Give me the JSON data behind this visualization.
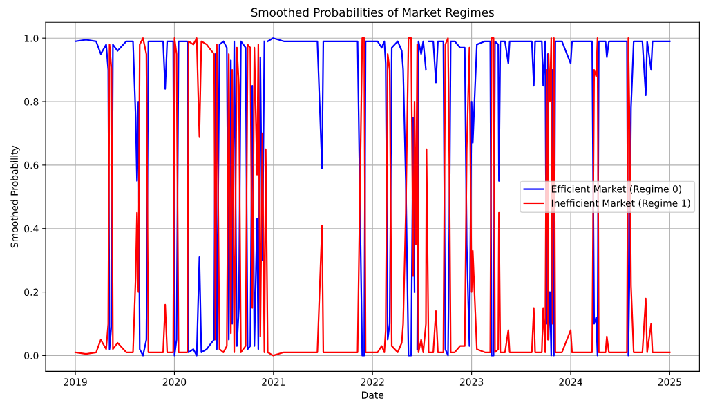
{
  "chart_data": {
    "type": "line",
    "title": "Smoothed Probabilities of Market Regimes",
    "xlabel": "Date",
    "ylabel": "Smoothed Probability",
    "x": [
      2019.0,
      2019.108,
      2019.21,
      2019.257,
      2019.311,
      2019.332,
      2019.345,
      2019.365,
      2019.379,
      2019.426,
      2019.514,
      2019.582,
      2019.609,
      2019.622,
      2019.636,
      2019.65,
      2019.683,
      2019.717,
      2019.737,
      2019.886,
      2019.907,
      2019.927,
      2019.988,
      2020.001,
      2020.022,
      2020.042,
      2020.13,
      2020.143,
      2020.191,
      2020.225,
      2020.252,
      2020.272,
      2020.326,
      2020.374,
      2020.401,
      2020.414,
      2020.428,
      2020.455,
      2020.495,
      2020.529,
      2020.549,
      2020.57,
      2020.583,
      2020.604,
      2020.631,
      2020.651,
      2020.671,
      2020.719,
      2020.739,
      2020.766,
      2020.786,
      2020.807,
      2020.834,
      2020.847,
      2020.867,
      2020.888,
      2020.908,
      2020.922,
      2020.942,
      2020.996,
      2021.104,
      2021.24,
      2021.443,
      2021.49,
      2021.503,
      2021.646,
      2021.849,
      2021.896,
      2021.916,
      2021.93,
      2022.051,
      2022.092,
      2022.119,
      2022.133,
      2022.153,
      2022.173,
      2022.194,
      2022.254,
      2022.295,
      2022.309,
      2022.336,
      2022.363,
      2022.39,
      2022.41,
      2022.424,
      2022.437,
      2022.451,
      2022.464,
      2022.491,
      2022.512,
      2022.539,
      2022.545,
      2022.566,
      2022.613,
      2022.64,
      2022.66,
      2022.715,
      2022.735,
      2022.762,
      2022.775,
      2022.789,
      2022.83,
      2022.884,
      2022.931,
      2022.951,
      2022.978,
      2023.0,
      2023.012,
      2023.033,
      2023.053,
      2023.134,
      2023.188,
      2023.202,
      2023.222,
      2023.236,
      2023.269,
      2023.276,
      2023.29,
      2023.337,
      2023.371,
      2023.384,
      2023.472,
      2023.608,
      2023.628,
      2023.641,
      2023.709,
      2023.723,
      2023.743,
      2023.757,
      2023.77,
      2023.777,
      2023.79,
      2023.804,
      2023.817,
      2023.831,
      2023.845,
      2023.912,
      2024.0,
      2024.014,
      2024.149,
      2024.217,
      2024.237,
      2024.257,
      2024.271,
      2024.284,
      2024.352,
      2024.365,
      2024.386,
      2024.555,
      2024.568,
      2024.582,
      2024.596,
      2024.609,
      2024.636,
      2024.724,
      2024.758,
      2024.772,
      2024.812,
      2024.826,
      2025.0
    ],
    "series": [
      {
        "name": "Efficient Market (Regime 0)",
        "color": "#0000ff",
        "values": [
          0.99,
          0.995,
          0.99,
          0.95,
          0.98,
          0.9,
          0.02,
          0.1,
          0.98,
          0.96,
          0.99,
          0.99,
          0.75,
          0.55,
          0.8,
          0.02,
          0.0,
          0.05,
          0.99,
          0.99,
          0.84,
          0.99,
          0.99,
          0.0,
          0.05,
          0.99,
          0.99,
          0.01,
          0.02,
          0.0,
          0.31,
          0.01,
          0.02,
          0.04,
          0.05,
          0.95,
          0.02,
          0.98,
          0.99,
          0.97,
          0.05,
          0.93,
          0.1,
          0.99,
          0.03,
          0.15,
          0.99,
          0.97,
          0.02,
          0.03,
          0.85,
          0.03,
          0.43,
          0.02,
          0.94,
          0.3,
          0.99,
          null,
          0.99,
          1.0,
          0.99,
          0.99,
          0.99,
          0.59,
          0.99,
          0.99,
          0.99,
          0.0,
          0.0,
          0.99,
          0.99,
          0.97,
          0.99,
          0.92,
          0.05,
          0.1,
          0.97,
          0.99,
          0.96,
          0.9,
          0.55,
          0.0,
          0.0,
          0.75,
          0.2,
          null,
          0.02,
          0.99,
          0.95,
          0.99,
          0.9,
          null,
          0.99,
          0.99,
          0.86,
          0.99,
          0.99,
          0.02,
          0.0,
          0.4,
          0.99,
          0.99,
          0.97,
          0.97,
          0.35,
          0.03,
          0.8,
          0.67,
          0.83,
          0.98,
          0.99,
          0.99,
          0.0,
          0.0,
          0.99,
          0.98,
          0.55,
          0.99,
          0.99,
          0.92,
          0.99,
          0.99,
          0.99,
          0.85,
          0.99,
          0.99,
          0.85,
          0.99,
          0.1,
          0.95,
          0.05,
          0.2,
          0.0,
          0.9,
          0.0,
          0.99,
          0.99,
          0.92,
          0.99,
          0.99,
          0.99,
          0.1,
          0.12,
          0.0,
          0.99,
          0.99,
          0.94,
          0.99,
          0.99,
          0.99,
          0.0,
          0.3,
          0.78,
          0.99,
          0.99,
          0.82,
          0.99,
          0.9,
          0.99,
          0.99
        ]
      },
      {
        "name": "Inefficient Market (Regime 1)",
        "color": "#ff0000",
        "values": [
          0.01,
          0.005,
          0.01,
          0.05,
          0.02,
          0.1,
          0.98,
          0.9,
          0.02,
          0.04,
          0.01,
          0.01,
          0.25,
          0.45,
          0.2,
          0.98,
          1.0,
          0.95,
          0.01,
          0.01,
          0.16,
          0.01,
          0.01,
          1.0,
          0.95,
          0.01,
          0.01,
          0.99,
          0.98,
          1.0,
          0.69,
          0.99,
          0.98,
          0.96,
          0.95,
          0.05,
          0.98,
          0.02,
          0.01,
          0.03,
          0.95,
          0.07,
          0.9,
          0.01,
          0.97,
          0.85,
          0.01,
          0.03,
          0.98,
          0.97,
          0.15,
          0.97,
          0.57,
          0.98,
          0.06,
          0.7,
          0.01,
          0.65,
          0.01,
          0.0,
          0.01,
          0.01,
          0.01,
          0.41,
          0.01,
          0.01,
          0.01,
          1.0,
          1.0,
          0.01,
          0.01,
          0.03,
          0.01,
          0.08,
          0.95,
          0.9,
          0.03,
          0.01,
          0.04,
          0.1,
          0.45,
          1.0,
          1.0,
          0.25,
          0.8,
          0.35,
          0.98,
          0.01,
          0.05,
          0.01,
          0.1,
          0.65,
          0.01,
          0.01,
          0.14,
          0.01,
          0.01,
          0.98,
          1.0,
          0.6,
          0.01,
          0.01,
          0.03,
          0.03,
          0.65,
          0.97,
          0.2,
          0.33,
          0.17,
          0.02,
          0.01,
          0.01,
          1.0,
          1.0,
          0.01,
          0.02,
          0.45,
          0.01,
          0.01,
          0.08,
          0.01,
          0.01,
          0.01,
          0.15,
          0.01,
          0.01,
          0.15,
          0.01,
          0.9,
          0.05,
          0.95,
          0.8,
          1.0,
          0.1,
          1.0,
          0.01,
          0.01,
          0.08,
          0.01,
          0.01,
          0.01,
          0.9,
          0.88,
          1.0,
          0.01,
          0.01,
          0.06,
          0.01,
          0.01,
          0.01,
          1.0,
          0.7,
          0.22,
          0.01,
          0.01,
          0.18,
          0.01,
          0.1,
          0.01,
          0.01
        ]
      }
    ],
    "xlim": [
      2018.7,
      2025.3
    ],
    "xticks": [
      2019,
      2020,
      2021,
      2022,
      2023,
      2024,
      2025
    ],
    "ylim": [
      -0.05,
      1.05
    ],
    "yticks": [
      {
        "value": 0,
        "label": "0.0"
      },
      {
        "value": 0.2,
        "label": "0.2"
      },
      {
        "value": 0.4,
        "label": "0.4"
      },
      {
        "value": 0.6,
        "label": "0.6"
      },
      {
        "value": 0.8,
        "label": "0.8"
      },
      {
        "value": 1,
        "label": "1.0"
      }
    ],
    "grid": true,
    "legend": "right",
    "marker": "none",
    "line_style": "solid"
  }
}
